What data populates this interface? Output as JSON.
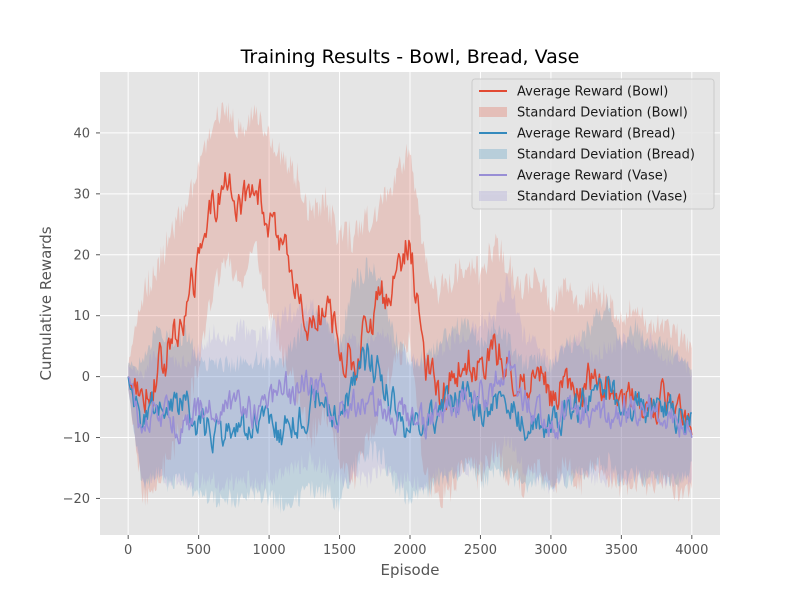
{
  "chart_data": {
    "type": "line",
    "title": "Training Results - Bowl, Bread, Vase",
    "xlabel": "Episode",
    "ylabel": "Cumulative Rewards",
    "xlim": [
      -200,
      4200
    ],
    "ylim": [
      -26,
      50
    ],
    "xticks": [
      0,
      500,
      1000,
      1500,
      2000,
      2500,
      3000,
      3500,
      4000
    ],
    "yticks": [
      -20,
      -10,
      0,
      10,
      20,
      30,
      40
    ],
    "grid": true,
    "legend_position": "top-right",
    "legend": [
      {
        "label": "Average Reward (Bowl)",
        "kind": "line",
        "series": 0
      },
      {
        "label": "Standard Deviation (Bowl)",
        "kind": "band",
        "series": 0
      },
      {
        "label": "Average Reward (Bread)",
        "kind": "line",
        "series": 1
      },
      {
        "label": "Standard Deviation (Bread)",
        "kind": "band",
        "series": 1
      },
      {
        "label": "Average Reward (Vase)",
        "kind": "line",
        "series": 2
      },
      {
        "label": "Standard Deviation (Vase)",
        "kind": "band",
        "series": 2
      }
    ],
    "x": [
      0,
      100,
      200,
      300,
      400,
      500,
      600,
      700,
      800,
      900,
      1000,
      1100,
      1200,
      1300,
      1400,
      1500,
      1600,
      1700,
      1800,
      1900,
      2000,
      2100,
      2200,
      2300,
      2400,
      2500,
      2600,
      2700,
      2800,
      2900,
      3000,
      3100,
      3200,
      3300,
      3400,
      3500,
      3600,
      3700,
      3800,
      3900,
      4000
    ],
    "series": [
      {
        "name": "Bowl",
        "color": "#E24A33",
        "mean": [
          0,
          -3,
          0,
          5,
          10,
          18,
          28,
          32,
          27,
          33,
          25,
          20,
          15,
          8,
          12,
          5,
          3,
          8,
          12,
          18,
          22,
          2,
          -3,
          -1,
          3,
          0,
          5,
          1,
          -2,
          2,
          -4,
          1,
          -3,
          0,
          -2,
          -4,
          -3,
          -5,
          -4,
          -6,
          -7
        ],
        "std": [
          2,
          16,
          18,
          18,
          17,
          16,
          14,
          12,
          13,
          11,
          14,
          16,
          18,
          18,
          17,
          18,
          20,
          18,
          16,
          15,
          16,
          18,
          17,
          17,
          16,
          17,
          17,
          17,
          16,
          16,
          15,
          15,
          15,
          14,
          15,
          14,
          14,
          13,
          13,
          13,
          11
        ]
      },
      {
        "name": "Bread",
        "color": "#348ABD",
        "mean": [
          0,
          -8,
          -4,
          -6,
          -5,
          -8,
          -9,
          -9,
          -9,
          -8,
          -9,
          -9,
          -7,
          -4,
          -5,
          -8,
          0,
          3,
          1,
          -6,
          -9,
          -8,
          -6,
          -4,
          -3,
          -6,
          -4,
          -5,
          -8,
          -7,
          -8,
          -6,
          -5,
          -3,
          -1,
          -6,
          -4,
          -6,
          -5,
          -7,
          -7
        ],
        "std": [
          2,
          10,
          12,
          12,
          12,
          11,
          11,
          11,
          11,
          11,
          11,
          12,
          13,
          14,
          14,
          13,
          15,
          15,
          14,
          12,
          11,
          11,
          11,
          12,
          12,
          11,
          12,
          11,
          10,
          10,
          10,
          11,
          11,
          12,
          13,
          11,
          12,
          11,
          11,
          10,
          8
        ]
      },
      {
        "name": "Vase",
        "color": "#988ED5",
        "mean": [
          0,
          -9,
          -6,
          -7,
          -8,
          -6,
          -5,
          -6,
          -4,
          -6,
          -5,
          -3,
          -2,
          -1,
          -3,
          -6,
          -5,
          -6,
          -4,
          -6,
          -7,
          -8,
          -6,
          -5,
          -4,
          -3,
          -2,
          3,
          -4,
          -6,
          -8,
          -6,
          -5,
          -7,
          -6,
          -5,
          -6,
          -5,
          -7,
          -7,
          -8
        ],
        "std": [
          2,
          9,
          10,
          10,
          10,
          11,
          12,
          12,
          12,
          12,
          12,
          13,
          13,
          13,
          12,
          11,
          11,
          11,
          11,
          11,
          10,
          10,
          10,
          11,
          11,
          12,
          12,
          13,
          11,
          11,
          10,
          11,
          11,
          10,
          11,
          11,
          11,
          11,
          10,
          10,
          9
        ]
      }
    ]
  }
}
